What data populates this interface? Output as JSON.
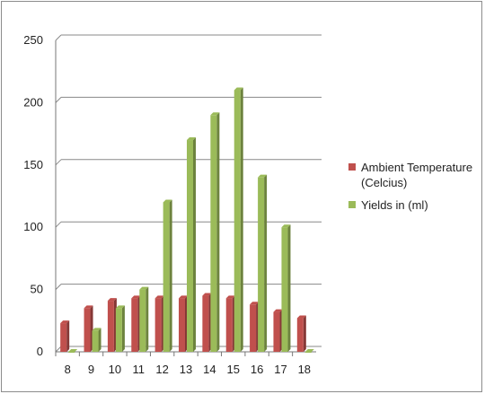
{
  "chart_data": {
    "type": "bar",
    "categories": [
      "8",
      "9",
      "10",
      "11",
      "12",
      "13",
      "14",
      "15",
      "16",
      "17",
      "18"
    ],
    "series": [
      {
        "name": "Ambient Temperature (Celcius)",
        "color": "#c0504d",
        "values": [
          23,
          35,
          41,
          43,
          43,
          43,
          45,
          43,
          38,
          32,
          27
        ]
      },
      {
        "name": "Yields in (ml)",
        "color": "#9bbb59",
        "values": [
          0,
          17,
          35,
          50,
          120,
          170,
          190,
          210,
          140,
          100,
          0
        ]
      }
    ],
    "yticks": [
      "0",
      "50",
      "100",
      "150",
      "200",
      "250"
    ],
    "ylim": [
      0,
      250
    ],
    "grid": true,
    "legend_position": "right",
    "xlabel": "",
    "ylabel": "",
    "title": ""
  }
}
